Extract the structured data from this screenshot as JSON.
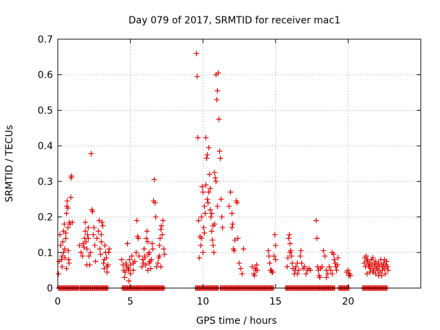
{
  "chart_data": {
    "type": "scatter",
    "title": "Day 079 of 2017, SRMTID for receiver mac1",
    "xlabel": "GPS time / hours",
    "ylabel": "SRMTID / TECUs",
    "xlim": [
      0,
      25
    ],
    "ylim": [
      0,
      0.7
    ],
    "xticks": [
      0,
      5,
      10,
      15,
      20
    ],
    "yticks": [
      0,
      0.1,
      0.2,
      0.3,
      0.4,
      0.5,
      0.6,
      0.7
    ],
    "ytick_labels": [
      "0",
      "0.1",
      "0.2",
      "0.3",
      "0.4",
      "0.5",
      "0.6",
      "0.7"
    ],
    "grid": true,
    "marker": "+",
    "color": "#e00000",
    "series": [
      {
        "name": "SRMTID",
        "points": [
          [
            0.05,
            0.04
          ],
          [
            0.1,
            0.075
          ],
          [
            0.15,
            0.15
          ],
          [
            0.2,
            0.12
          ],
          [
            0.3,
            0.09
          ],
          [
            0.35,
            0.13
          ],
          [
            0.4,
            0.16
          ],
          [
            0.45,
            0.18
          ],
          [
            0.5,
            0.085
          ],
          [
            0.55,
            0.14
          ],
          [
            0.6,
            0.21
          ],
          [
            0.62,
            0.23
          ],
          [
            0.65,
            0.245
          ],
          [
            0.7,
            0.17
          ],
          [
            0.72,
            0.105
          ],
          [
            0.75,
            0.08
          ],
          [
            0.8,
            0.185
          ],
          [
            0.85,
            0.18
          ],
          [
            0.9,
            0.255
          ],
          [
            0.92,
            0.31
          ],
          [
            0.95,
            0.315
          ],
          [
            1.0,
            0.185
          ],
          [
            0.6,
            0.055
          ],
          [
            0.4,
            0.1
          ],
          [
            0.3,
            0.06
          ],
          [
            0.25,
            0.08
          ],
          [
            0.7,
            0.225
          ],
          [
            0.55,
            0.155
          ],
          [
            0.48,
            0.11
          ],
          [
            0.78,
            0.07
          ],
          [
            1.5,
            0.12
          ],
          [
            1.6,
            0.1
          ],
          [
            1.7,
            0.09
          ],
          [
            1.75,
            0.125
          ],
          [
            1.8,
            0.115
          ],
          [
            1.85,
            0.14
          ],
          [
            1.9,
            0.16
          ],
          [
            1.95,
            0.13
          ],
          [
            2.0,
            0.11
          ],
          [
            2.05,
            0.15
          ],
          [
            2.1,
            0.17
          ],
          [
            2.15,
            0.09
          ],
          [
            2.2,
            0.065
          ],
          [
            2.25,
            0.1
          ],
          [
            2.3,
            0.378
          ],
          [
            2.35,
            0.22
          ],
          [
            2.4,
            0.215
          ],
          [
            2.45,
            0.15
          ],
          [
            2.5,
            0.17
          ],
          [
            2.55,
            0.12
          ],
          [
            2.6,
            0.075
          ],
          [
            2.0,
            0.065
          ],
          [
            1.9,
            0.185
          ],
          [
            2.1,
            0.14
          ],
          [
            2.7,
            0.14
          ],
          [
            2.8,
            0.16
          ],
          [
            2.85,
            0.19
          ],
          [
            2.9,
            0.11
          ],
          [
            2.95,
            0.095
          ],
          [
            3.0,
            0.13
          ],
          [
            3.05,
            0.185
          ],
          [
            3.1,
            0.175
          ],
          [
            3.15,
            0.07
          ],
          [
            3.2,
            0.055
          ],
          [
            3.25,
            0.12
          ],
          [
            3.3,
            0.1
          ],
          [
            3.35,
            0.085
          ],
          [
            3.4,
            0.045
          ],
          [
            3.45,
            0.065
          ],
          [
            3.5,
            0.1
          ],
          [
            3.55,
            0.11
          ],
          [
            3.0,
            0.15
          ],
          [
            3.2,
            0.08
          ],
          [
            3.4,
            0.06
          ],
          [
            4.4,
            0.08
          ],
          [
            4.5,
            0.065
          ],
          [
            4.55,
            0.05
          ],
          [
            4.6,
            0.03
          ],
          [
            4.65,
            0.045
          ],
          [
            4.7,
            0.07
          ],
          [
            4.75,
            0.06
          ],
          [
            4.8,
            0.125
          ],
          [
            4.85,
            0.055
          ],
          [
            4.9,
            0.05
          ],
          [
            4.95,
            0.08
          ],
          [
            5.0,
            0.065
          ],
          [
            5.1,
            0.09
          ],
          [
            5.2,
            0.07
          ],
          [
            5.3,
            0.075
          ],
          [
            5.4,
            0.1
          ],
          [
            5.45,
            0.19
          ],
          [
            5.5,
            0.145
          ],
          [
            5.55,
            0.14
          ],
          [
            5.6,
            0.09
          ],
          [
            5.0,
            0.04
          ],
          [
            4.9,
            0.02
          ],
          [
            5.2,
            0.05
          ],
          [
            5.8,
            0.06
          ],
          [
            5.85,
            0.08
          ],
          [
            5.9,
            0.07
          ],
          [
            5.95,
            0.11
          ],
          [
            6.0,
            0.09
          ],
          [
            6.05,
            0.065
          ],
          [
            6.1,
            0.14
          ],
          [
            6.15,
            0.16
          ],
          [
            6.2,
            0.13
          ],
          [
            6.25,
            0.095
          ],
          [
            6.3,
            0.1
          ],
          [
            6.35,
            0.075
          ],
          [
            6.4,
            0.055
          ],
          [
            6.45,
            0.08
          ],
          [
            6.5,
            0.125
          ],
          [
            6.55,
            0.11
          ],
          [
            6.6,
            0.245
          ],
          [
            6.65,
            0.305
          ],
          [
            6.7,
            0.24
          ],
          [
            6.75,
            0.2
          ],
          [
            6.8,
            0.06
          ],
          [
            6.3,
            0.07
          ],
          [
            6.2,
            0.05
          ],
          [
            6.0,
            0.085
          ],
          [
            6.9,
            0.07
          ],
          [
            6.95,
            0.085
          ],
          [
            7.0,
            0.12
          ],
          [
            7.05,
            0.14
          ],
          [
            7.1,
            0.165
          ],
          [
            7.15,
            0.175
          ],
          [
            7.2,
            0.15
          ],
          [
            7.25,
            0.19
          ],
          [
            7.3,
            0.11
          ],
          [
            7.35,
            0.095
          ],
          [
            7.0,
            0.09
          ],
          [
            7.1,
            0.06
          ],
          [
            9.55,
            0.66
          ],
          [
            9.6,
            0.595
          ],
          [
            9.65,
            0.423
          ],
          [
            9.7,
            0.19
          ],
          [
            9.75,
            0.085
          ],
          [
            9.8,
            0.145
          ],
          [
            9.85,
            0.12
          ],
          [
            9.9,
            0.2
          ],
          [
            9.95,
            0.285
          ],
          [
            10.0,
            0.27
          ],
          [
            10.05,
            0.17
          ],
          [
            10.1,
            0.155
          ],
          [
            10.15,
            0.21
          ],
          [
            10.2,
            0.423
          ],
          [
            10.25,
            0.365
          ],
          [
            10.3,
            0.375
          ],
          [
            10.35,
            0.24
          ],
          [
            10.4,
            0.395
          ],
          [
            10.45,
            0.32
          ],
          [
            10.5,
            0.28
          ],
          [
            10.55,
            0.2
          ],
          [
            10.6,
            0.21
          ],
          [
            10.65,
            0.135
          ],
          [
            10.7,
            0.175
          ],
          [
            10.75,
            0.1
          ],
          [
            10.8,
            0.325
          ],
          [
            10.85,
            0.31
          ],
          [
            10.9,
            0.6
          ],
          [
            10.95,
            0.53
          ],
          [
            11.0,
            0.555
          ],
          [
            11.05,
            0.605
          ],
          [
            11.1,
            0.475
          ],
          [
            11.15,
            0.385
          ],
          [
            11.2,
            0.365
          ],
          [
            11.25,
            0.25
          ],
          [
            11.3,
            0.2
          ],
          [
            11.35,
            0.17
          ],
          [
            10.0,
            0.1
          ],
          [
            10.2,
            0.29
          ],
          [
            10.3,
            0.25
          ],
          [
            10.5,
            0.22
          ],
          [
            10.6,
            0.16
          ],
          [
            10.7,
            0.12
          ],
          [
            10.4,
            0.27
          ],
          [
            10.1,
            0.23
          ],
          [
            9.9,
            0.14
          ],
          [
            10.8,
            0.18
          ],
          [
            11.0,
            0.23
          ],
          [
            10.9,
            0.3
          ],
          [
            11.8,
            0.23
          ],
          [
            11.9,
            0.27
          ],
          [
            12.0,
            0.21
          ],
          [
            12.05,
            0.18
          ],
          [
            12.1,
            0.11
          ],
          [
            12.15,
            0.105
          ],
          [
            12.2,
            0.135
          ],
          [
            12.3,
            0.245
          ],
          [
            12.35,
            0.24
          ],
          [
            12.4,
            0.14
          ],
          [
            12.5,
            0.07
          ],
          [
            12.6,
            0.055
          ],
          [
            12.7,
            0.04
          ],
          [
            12.8,
            0.11
          ],
          [
            12.0,
            0.17
          ],
          [
            13.4,
            0.06
          ],
          [
            13.5,
            0.04
          ],
          [
            13.55,
            0.035
          ],
          [
            13.6,
            0.055
          ],
          [
            13.65,
            0.05
          ],
          [
            13.7,
            0.065
          ],
          [
            13.75,
            0.05
          ],
          [
            14.5,
            0.105
          ],
          [
            14.55,
            0.09
          ],
          [
            14.6,
            0.07
          ],
          [
            14.65,
            0.05
          ],
          [
            14.7,
            0.05
          ],
          [
            14.75,
            0.045
          ],
          [
            14.8,
            0.045
          ],
          [
            14.9,
            0.09
          ],
          [
            15.0,
            0.08
          ],
          [
            14.95,
            0.15
          ],
          [
            15.0,
            0.12
          ],
          [
            15.8,
            0.06
          ],
          [
            15.85,
            0.085
          ],
          [
            15.9,
            0.14
          ],
          [
            15.95,
            0.15
          ],
          [
            16.0,
            0.125
          ],
          [
            16.05,
            0.105
          ],
          [
            16.1,
            0.09
          ],
          [
            16.15,
            0.07
          ],
          [
            16.2,
            0.055
          ],
          [
            16.3,
            0.04
          ],
          [
            16.35,
            0.05
          ],
          [
            16.4,
            0.06
          ],
          [
            16.5,
            0.04
          ],
          [
            16.6,
            0.05
          ],
          [
            16.7,
            0.09
          ],
          [
            16.75,
            0.105
          ],
          [
            16.8,
            0.07
          ],
          [
            16.9,
            0.055
          ],
          [
            17.0,
            0.06
          ],
          [
            17.1,
            0.04
          ],
          [
            17.2,
            0.05
          ],
          [
            17.3,
            0.055
          ],
          [
            17.4,
            0.05
          ],
          [
            16.5,
            0.07
          ],
          [
            16.0,
            0.1
          ],
          [
            17.8,
            0.19
          ],
          [
            17.85,
            0.14
          ],
          [
            17.9,
            0.06
          ],
          [
            17.95,
            0.05
          ],
          [
            18.0,
            0.035
          ],
          [
            18.05,
            0.03
          ],
          [
            18.1,
            0.055
          ],
          [
            18.2,
            0.06
          ],
          [
            18.3,
            0.105
          ],
          [
            18.4,
            0.09
          ],
          [
            18.5,
            0.05
          ],
          [
            18.6,
            0.04
          ],
          [
            18.7,
            0.06
          ],
          [
            18.8,
            0.05
          ],
          [
            18.9,
            0.1
          ],
          [
            19.0,
            0.095
          ],
          [
            19.05,
            0.08
          ],
          [
            19.1,
            0.07
          ],
          [
            19.15,
            0.06
          ],
          [
            19.2,
            0.05
          ],
          [
            19.25,
            0.065
          ],
          [
            19.3,
            0.085
          ],
          [
            18.5,
            0.03
          ],
          [
            18.9,
            0.04
          ],
          [
            19.9,
            0.045
          ],
          [
            20.0,
            0.05
          ],
          [
            20.05,
            0.035
          ],
          [
            20.1,
            0.04
          ],
          [
            20.15,
            0.035
          ],
          [
            21.1,
            0.07
          ],
          [
            21.15,
            0.085
          ],
          [
            21.2,
            0.06
          ],
          [
            21.25,
            0.09
          ],
          [
            21.3,
            0.075
          ],
          [
            21.35,
            0.08
          ],
          [
            21.4,
            0.065
          ],
          [
            21.45,
            0.06
          ],
          [
            21.5,
            0.07
          ],
          [
            21.55,
            0.055
          ],
          [
            21.6,
            0.08
          ],
          [
            21.65,
            0.065
          ],
          [
            21.7,
            0.045
          ],
          [
            21.75,
            0.05
          ],
          [
            21.8,
            0.07
          ],
          [
            21.85,
            0.06
          ],
          [
            21.9,
            0.04
          ],
          [
            21.95,
            0.055
          ],
          [
            22.0,
            0.065
          ],
          [
            22.05,
            0.05
          ],
          [
            22.1,
            0.07
          ],
          [
            22.15,
            0.06
          ],
          [
            22.2,
            0.045
          ],
          [
            22.25,
            0.08
          ],
          [
            22.3,
            0.065
          ],
          [
            22.35,
            0.05
          ],
          [
            22.4,
            0.06
          ],
          [
            22.45,
            0.07
          ],
          [
            22.5,
            0.055
          ],
          [
            22.55,
            0.04
          ],
          [
            22.6,
            0.065
          ],
          [
            22.65,
            0.075
          ],
          [
            22.7,
            0.06
          ],
          [
            22.75,
            0.05
          ],
          [
            21.3,
            0.04
          ],
          [
            21.7,
            0.085
          ],
          [
            22.1,
            0.035
          ],
          [
            22.5,
            0.08
          ],
          [
            21.5,
            0.045
          ],
          [
            21.9,
            0.075
          ],
          [
            22.3,
            0.035
          ]
        ]
      }
    ],
    "zero_runs": [
      [
        0.05,
        1.45
      ],
      [
        1.55,
        3.5
      ],
      [
        4.45,
        7.35
      ],
      [
        9.5,
        11.05
      ],
      [
        11.2,
        14.9
      ],
      [
        15.7,
        19.1
      ],
      [
        19.35,
        20.1
      ],
      [
        21.0,
        22.7
      ]
    ]
  }
}
